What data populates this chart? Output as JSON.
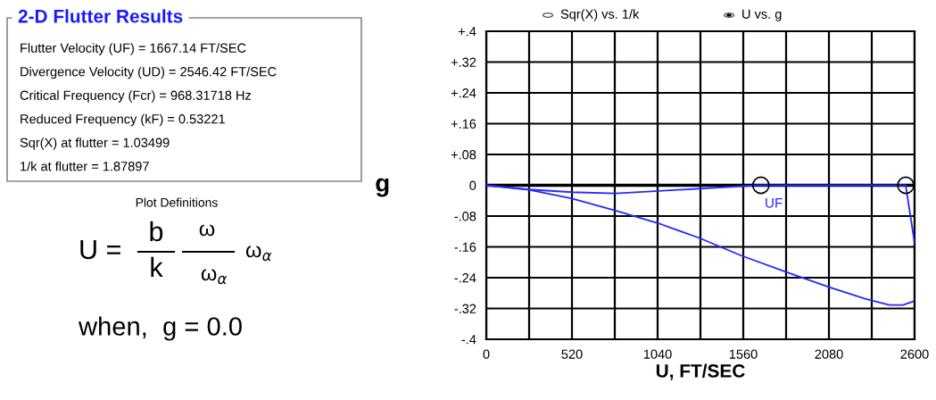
{
  "chart_data": {
    "type": "line",
    "xlabel": "U, FT/SEC",
    "ylabel": "g",
    "xlim": [
      0,
      2600
    ],
    "ylim": [
      -0.4,
      0.4
    ],
    "xticks": [
      0,
      {
        "value": 260,
        "label": null
      },
      520,
      {
        "value": 780,
        "label": null
      },
      1040,
      {
        "value": 1300,
        "label": null
      },
      1560,
      {
        "value": 1820,
        "label": null
      },
      2080,
      {
        "value": 2340,
        "label": null
      },
      2600
    ],
    "yticks": [
      {
        "value": -0.4,
        "label": "-.4"
      },
      {
        "value": -0.32,
        "label": "-.32"
      },
      {
        "value": -0.24,
        "label": "-.24"
      },
      {
        "value": -0.16,
        "label": "-.16"
      },
      {
        "value": -0.08,
        "label": "-.08"
      },
      {
        "value": 0,
        "label": "0"
      },
      {
        "value": 0.08,
        "label": "+.08"
      },
      {
        "value": 0.16,
        "label": "+.16"
      },
      {
        "value": 0.24,
        "label": "+.24"
      },
      {
        "value": 0.32,
        "label": "+.32"
      },
      {
        "value": 0.4,
        "label": "+.4"
      }
    ],
    "grid": true,
    "legend": false,
    "ref_lines": [
      {
        "axis": "y",
        "value": 0,
        "color": "#000000"
      }
    ],
    "series": [
      {
        "color": "#2828ff",
        "x": [
          0,
          260,
          520,
          785,
          1000,
          1365,
          1652,
          2100,
          2546,
          2600
        ],
        "values": [
          0,
          -0.011,
          -0.018,
          -0.021,
          -0.016,
          -0.007,
          0,
          0,
          0,
          -0.15
        ]
      },
      {
        "color": "#2828ff",
        "x": [
          0,
          260,
          515,
          780,
          1040,
          1300,
          1544,
          1820,
          2086,
          2300,
          2448,
          2530,
          2590
        ],
        "values": [
          0,
          -0.012,
          -0.034,
          -0.065,
          -0.098,
          -0.138,
          -0.182,
          -0.225,
          -0.265,
          -0.295,
          -0.311,
          -0.311,
          -0.302
        ]
      },
      {
        "type": "scatter",
        "color": "#000000",
        "marker": "circle",
        "x": [
          1667.14,
          2546.42
        ],
        "values": [
          0,
          0
        ]
      }
    ],
    "annotations": [
      "2-D Flutter Results",
      "Flutter Velocity (UF) = 1667.14 FT/SEC",
      "Divergence Velocity (UD) = 2546.42 FT/SEC",
      "Critical Frequency (Fcr) = 968.31718 Hz",
      "Reduced Frequency (kF) = 0.53221",
      "Sqr(X) at flutter = 1.03499",
      "1/k at flutter = 1.87897",
      "Plot Definitions",
      "U =",
      "b",
      "k",
      "ω",
      "ω$_{α}$",
      "ω$_{α}$",
      "when,  g = 0.0",
      "Sqr(X) vs. 1/k",
      "U vs. g",
      {
        "text": "UF",
        "x": 1667.14,
        "y": 0
      }
    ]
  }
}
